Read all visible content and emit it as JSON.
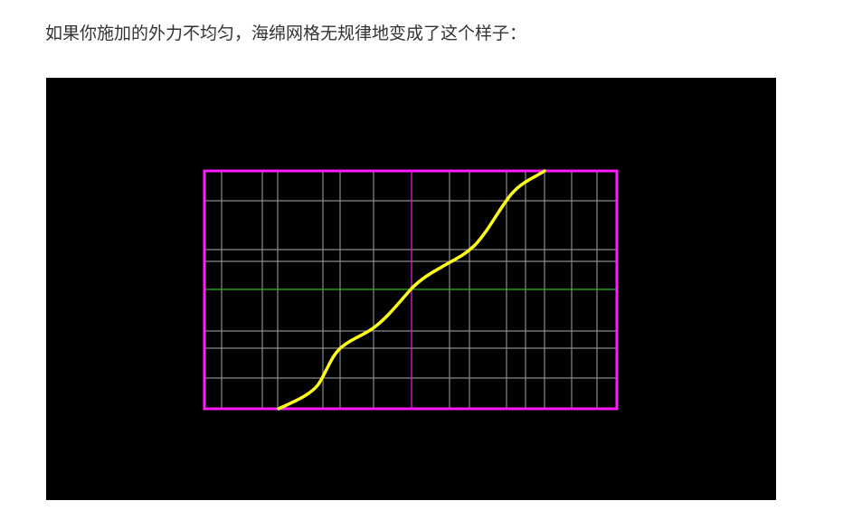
{
  "paragraph": "如果你施加的外力不均匀，海绵网格无规律地变成了这个样子："
}
